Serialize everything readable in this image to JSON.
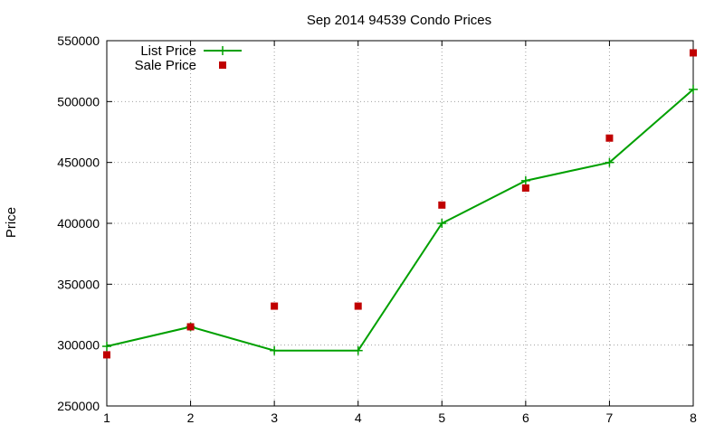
{
  "chart_data": {
    "type": "line",
    "title": "Sep 2014 94539 Condo Prices",
    "xlabel": "",
    "ylabel": "Price",
    "x": [
      1,
      2,
      3,
      4,
      5,
      6,
      7,
      8
    ],
    "xlim": [
      1,
      8
    ],
    "ylim": [
      250000,
      550000
    ],
    "xticks": [
      1,
      2,
      3,
      4,
      5,
      6,
      7,
      8
    ],
    "yticks": [
      250000,
      300000,
      350000,
      400000,
      450000,
      500000,
      550000
    ],
    "grid": true,
    "legend_position": "top-left",
    "series": [
      {
        "name": "List Price",
        "style": "line-with-plus-markers",
        "color": "#00a000",
        "values": [
          299000,
          315000,
          295500,
          295500,
          400000,
          435000,
          450000,
          510000
        ]
      },
      {
        "name": "Sale Price",
        "style": "square-markers",
        "color": "#c00000",
        "values": [
          292000,
          315000,
          332000,
          332000,
          415000,
          429000,
          470000,
          540000
        ]
      }
    ]
  }
}
